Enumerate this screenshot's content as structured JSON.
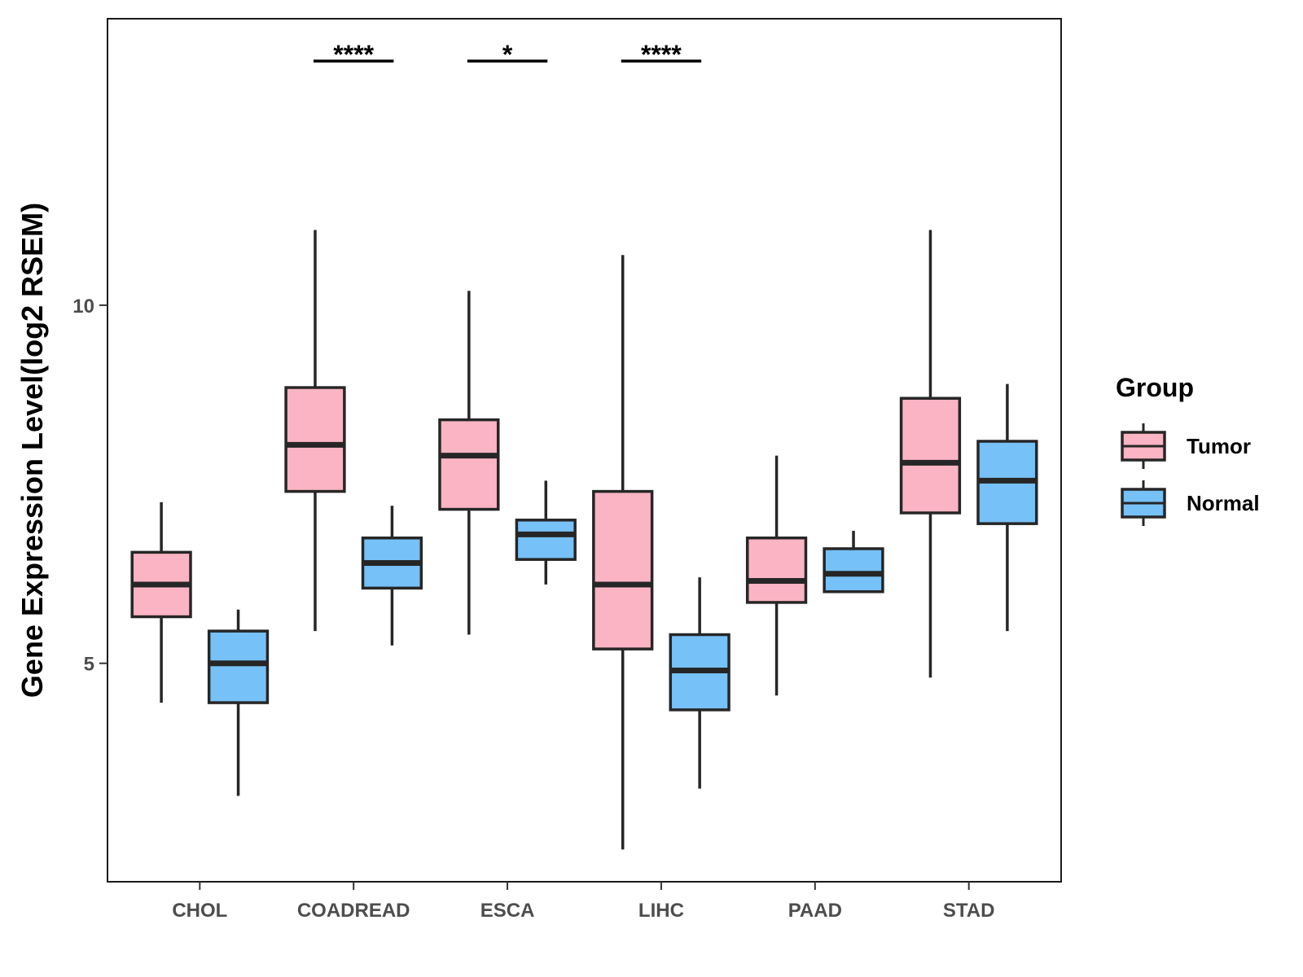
{
  "chart_data": {
    "type": "boxplot",
    "title": "",
    "xlabel": "",
    "ylabel": "Gene Expression Level(log2 RSEM)",
    "ylim": [
      1.95,
      14.0
    ],
    "yticks": [
      5,
      10
    ],
    "ytick_labels": [
      "5",
      "10"
    ],
    "grid": false,
    "categories": [
      "CHOL",
      "COADREAD",
      "ESCA",
      "LIHC",
      "PAAD",
      "STAD"
    ],
    "legend": {
      "title": "Group",
      "position": "right",
      "entries": [
        {
          "name": "Tumor",
          "color": "#fbb4c4"
        },
        {
          "name": "Normal",
          "color": "#76c1f7"
        }
      ]
    },
    "series": [
      {
        "name": "Tumor",
        "color": "#fbb4c4",
        "boxes": [
          {
            "category": "CHOL",
            "whisker_low": 4.45,
            "q1": 5.65,
            "median": 6.1,
            "q3": 6.55,
            "whisker_high": 7.25
          },
          {
            "category": "COADREAD",
            "whisker_low": 5.45,
            "q1": 7.4,
            "median": 8.05,
            "q3": 8.85,
            "whisker_high": 11.05
          },
          {
            "category": "ESCA",
            "whisker_low": 5.4,
            "q1": 7.15,
            "median": 7.9,
            "q3": 8.4,
            "whisker_high": 10.2
          },
          {
            "category": "LIHC",
            "whisker_low": 2.4,
            "q1": 5.2,
            "median": 6.1,
            "q3": 7.4,
            "whisker_high": 10.7
          },
          {
            "category": "PAAD",
            "whisker_low": 4.55,
            "q1": 5.85,
            "median": 6.15,
            "q3": 6.75,
            "whisker_high": 7.9
          },
          {
            "category": "STAD",
            "whisker_low": 4.8,
            "q1": 7.1,
            "median": 7.8,
            "q3": 8.7,
            "whisker_high": 11.05
          }
        ]
      },
      {
        "name": "Normal",
        "color": "#76c1f7",
        "boxes": [
          {
            "category": "CHOL",
            "whisker_low": 3.15,
            "q1": 4.45,
            "median": 5.0,
            "q3": 5.45,
            "whisker_high": 5.75
          },
          {
            "category": "COADREAD",
            "whisker_low": 5.25,
            "q1": 6.05,
            "median": 6.4,
            "q3": 6.75,
            "whisker_high": 7.2
          },
          {
            "category": "ESCA",
            "whisker_low": 6.1,
            "q1": 6.45,
            "median": 6.8,
            "q3": 7.0,
            "whisker_high": 7.55
          },
          {
            "category": "LIHC",
            "whisker_low": 3.25,
            "q1": 4.35,
            "median": 4.9,
            "q3": 5.4,
            "whisker_high": 6.2
          },
          {
            "category": "PAAD",
            "whisker_low": 6.0,
            "q1": 6.0,
            "median": 6.25,
            "q3": 6.6,
            "whisker_high": 6.85
          },
          {
            "category": "STAD",
            "whisker_low": 5.45,
            "q1": 6.95,
            "median": 7.55,
            "q3": 8.1,
            "whisker_high": 8.9
          }
        ]
      }
    ],
    "annotations": [
      {
        "category": "COADREAD",
        "label": "****"
      },
      {
        "category": "ESCA",
        "label": "*"
      },
      {
        "category": "LIHC",
        "label": "****"
      }
    ]
  }
}
